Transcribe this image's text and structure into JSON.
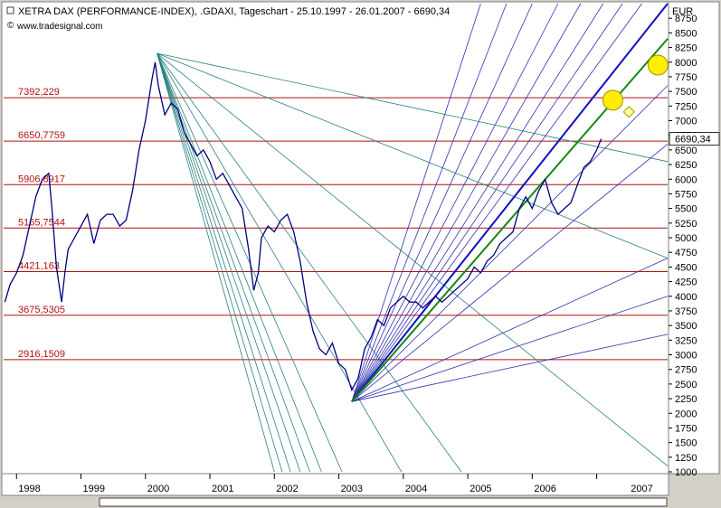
{
  "header": {
    "title": "XETRA DAX (PERFORMANCE-INDEX), .GDAXI, Tageschart - 25.10.1997 - 26.01.2007 - 6690,34",
    "source": "www.tradesignal.com"
  },
  "chart_data": {
    "type": "line",
    "title": "XETRA DAX (PERFORMANCE-INDEX), .GDAXI, Tageschart - 25.10.1997 - 26.01.2007 - 6690,34",
    "currency": "EUR",
    "last_value_label": "6690,34",
    "ylim": [
      1000,
      9000
    ],
    "y_ticks": [
      1000,
      1250,
      1500,
      1750,
      2000,
      2250,
      2500,
      2750,
      3000,
      3250,
      3500,
      3750,
      4000,
      4250,
      4500,
      4750,
      5000,
      5250,
      5500,
      5750,
      6000,
      6250,
      6500,
      6750,
      7000,
      7250,
      7500,
      7750,
      8000,
      8250,
      8500,
      8750
    ],
    "y_tick_labels": [
      "1000",
      "1250",
      "1500",
      "1750",
      "2000",
      "2250",
      "2500",
      "2750",
      "3000",
      "3250",
      "3500",
      "3750",
      "4000",
      "4250",
      "4500",
      "4750",
      "5000",
      "5250",
      "5500",
      "5750",
      "6000",
      "6250",
      "6500",
      "6750",
      "7000",
      "7250",
      "7500",
      "7750",
      "8000",
      "8250",
      "8500",
      "8750"
    ],
    "xlim": [
      1997.8,
      2008.1
    ],
    "x_year_ticks": [
      1998,
      1999,
      2000,
      2001,
      2002,
      2003,
      2004,
      2005,
      2006,
      2007
    ],
    "x_labels": [
      {
        "x": 1998.0,
        "text": "1998"
      },
      {
        "x": 1999.0,
        "text": "1999"
      },
      {
        "x": 2000.0,
        "text": "2000"
      },
      {
        "x": 2001.0,
        "text": "2001"
      },
      {
        "x": 2002.0,
        "text": "2002"
      },
      {
        "x": 2003.0,
        "text": "2003"
      },
      {
        "x": 2004.0,
        "text": "2004"
      },
      {
        "x": 2005.0,
        "text": "2005"
      },
      {
        "x": 2006.0,
        "text": "2006"
      },
      {
        "x": 2007.5,
        "text": "2007"
      }
    ],
    "series": [
      {
        "name": "",
        "color": "#000080",
        "x": [
          1997.82,
          1997.9,
          1998.0,
          1998.1,
          1998.2,
          1998.3,
          1998.4,
          1998.5,
          1998.55,
          1998.62,
          1998.7,
          1998.75,
          1998.8,
          1998.9,
          1999.0,
          1999.1,
          1999.2,
          1999.3,
          1999.4,
          1999.5,
          1999.6,
          1999.7,
          1999.8,
          1999.9,
          2000.0,
          2000.1,
          2000.15,
          2000.2,
          2000.3,
          2000.4,
          2000.5,
          2000.6,
          2000.7,
          2000.8,
          2000.9,
          2001.0,
          2001.1,
          2001.2,
          2001.3,
          2001.4,
          2001.5,
          2001.6,
          2001.68,
          2001.75,
          2001.8,
          2001.9,
          2002.0,
          2002.1,
          2002.2,
          2002.3,
          2002.4,
          2002.5,
          2002.6,
          2002.7,
          2002.8,
          2002.9,
          2003.0,
          2003.1,
          2003.2,
          2003.3,
          2003.4,
          2003.5,
          2003.6,
          2003.7,
          2003.8,
          2003.9,
          2004.0,
          2004.1,
          2004.2,
          2004.3,
          2004.4,
          2004.5,
          2004.6,
          2004.7,
          2004.8,
          2004.9,
          2005.0,
          2005.1,
          2005.2,
          2005.3,
          2005.4,
          2005.5,
          2005.6,
          2005.7,
          2005.8,
          2005.9,
          2006.0,
          2006.1,
          2006.2,
          2006.3,
          2006.4,
          2006.5,
          2006.6,
          2006.7,
          2006.8,
          2006.9,
          2007.0,
          2007.07
        ],
        "values": [
          3900,
          4200,
          4400,
          4700,
          5200,
          5700,
          6000,
          6100,
          5500,
          4500,
          3900,
          4400,
          4800,
          5000,
          5200,
          5400,
          4900,
          5300,
          5400,
          5400,
          5200,
          5300,
          5800,
          6500,
          7000,
          7700,
          8000,
          7600,
          7100,
          7300,
          7200,
          6800,
          6600,
          6400,
          6500,
          6300,
          6000,
          6100,
          5900,
          5700,
          5500,
          4800,
          4100,
          4400,
          5000,
          5200,
          5100,
          5300,
          5400,
          5100,
          4600,
          3900,
          3400,
          3100,
          3000,
          3200,
          2850,
          2750,
          2400,
          2600,
          3100,
          3300,
          3600,
          3500,
          3800,
          3900,
          4000,
          3900,
          3900,
          3800,
          3900,
          4000,
          3900,
          4000,
          4100,
          4200,
          4300,
          4500,
          4400,
          4600,
          4700,
          4900,
          5000,
          5100,
          5500,
          5700,
          5500,
          5800,
          6000,
          5600,
          5400,
          5500,
          5600,
          5900,
          6200,
          6300,
          6500,
          6690
        ]
      }
    ],
    "horizontal_levels": [
      {
        "value": 7392.229,
        "label": "7392,229"
      },
      {
        "value": 6650.7759,
        "label": "6650,7759"
      },
      {
        "value": 5906.8917,
        "label": "5906,8917"
      },
      {
        "value": 5165.7544,
        "label": "5165,7544"
      },
      {
        "value": 4421.163,
        "label": "4421,163"
      },
      {
        "value": 3675.5305,
        "label": "3675,5305"
      },
      {
        "value": 2916.1509,
        "label": "2916,1509"
      }
    ],
    "fan_down": {
      "origin": [
        2000.18,
        8150
      ],
      "targets_at_x2008": [
        6300,
        4650,
        1100
      ],
      "targets_at_y1000": [
        2004.9,
        2003.97,
        2003.05,
        2002.73,
        2002.55,
        2002.4,
        2002.25,
        2002.12,
        2002.0
      ]
    },
    "fan_up": {
      "origin": [
        2003.2,
        2200
      ],
      "targets_at_x2008": [
        7600,
        6600,
        4650,
        4000,
        3350
      ],
      "targets_at_y9000": [
        2005.2,
        2005.6,
        2006.0,
        2006.4,
        2006.75,
        2007.1,
        2007.4,
        2007.7
      ],
      "blue_target_at_x2008": 9000,
      "green_target_at_x2008": 8400
    },
    "markers": [
      {
        "shape": "circle",
        "x": 2007.25,
        "y": 7350,
        "color": "#ffee00"
      },
      {
        "shape": "circle",
        "x": 2007.95,
        "y": 7950,
        "color": "#ffee00"
      },
      {
        "shape": "diamond",
        "x": 2007.5,
        "y": 7150,
        "color": "#ffff99"
      }
    ]
  }
}
